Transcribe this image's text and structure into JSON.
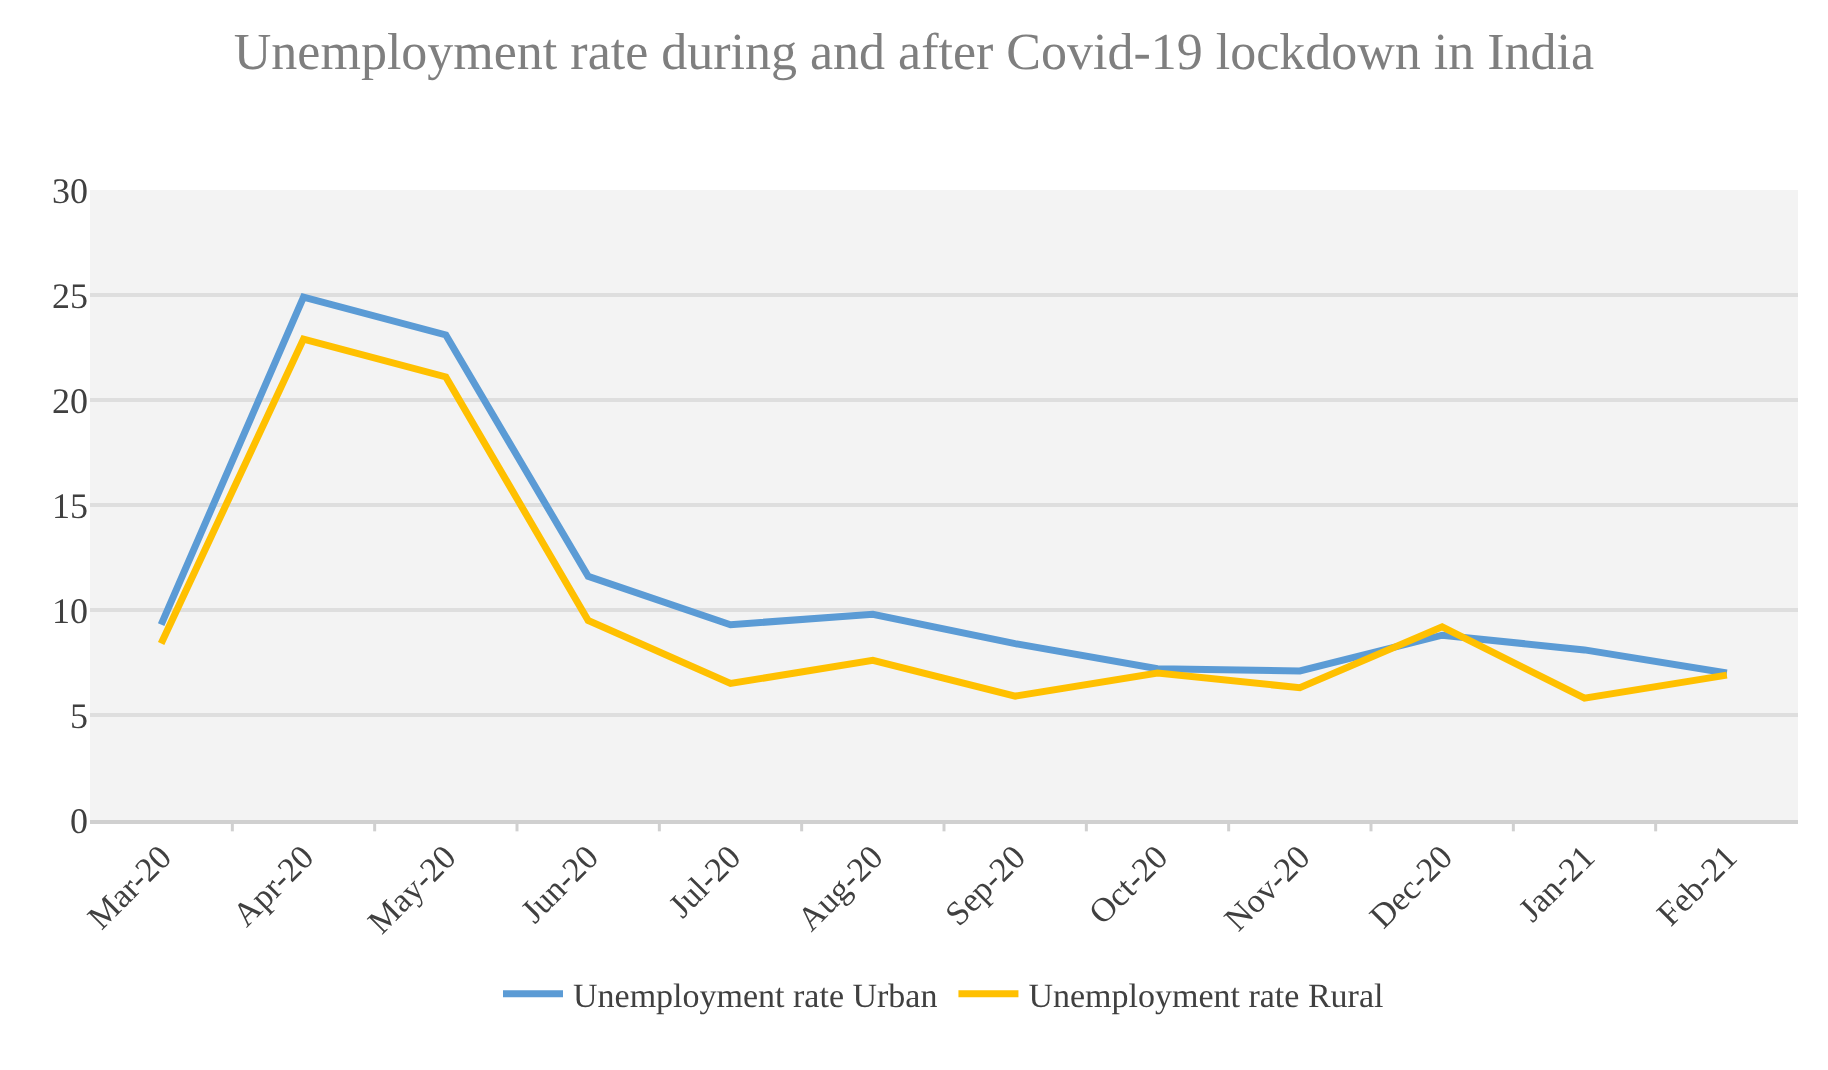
{
  "chart_data": {
    "type": "line",
    "title": "Unemployment rate during and after Covid-19 lockdown in India",
    "categories": [
      "Mar-20",
      "Apr-20",
      "May-20",
      "Jun-20",
      "Jul-20",
      "Aug-20",
      "Sep-20",
      "Oct-20",
      "Nov-20",
      "Dec-20",
      "Jan-21",
      "Feb-21"
    ],
    "series": [
      {
        "name": "Unemployment rate Urban",
        "color": "#5b9bd5",
        "values": [
          9.3,
          24.9,
          23.1,
          11.6,
          9.3,
          9.8,
          8.4,
          7.2,
          7.1,
          8.8,
          8.1,
          7.0
        ]
      },
      {
        "name": "Unemployment rate Rural",
        "color": "#ffc000",
        "values": [
          8.4,
          22.9,
          21.1,
          9.5,
          6.5,
          7.6,
          5.9,
          7.0,
          6.3,
          9.2,
          5.8,
          6.9
        ]
      }
    ],
    "ylim": [
      0,
      30
    ],
    "yticks": [
      0,
      5,
      10,
      15,
      20,
      25,
      30
    ],
    "grid": "y",
    "legend": "bottom",
    "marker": "none",
    "line_style": "solid"
  }
}
